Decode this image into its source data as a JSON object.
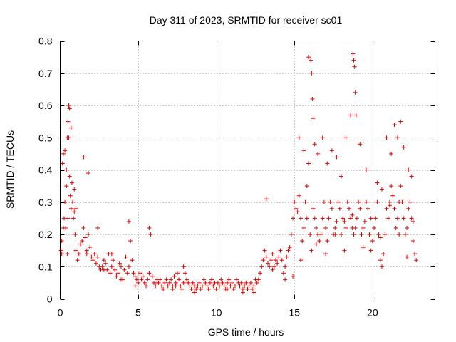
{
  "chart_data": {
    "type": "scatter",
    "title": "Day 311 of 2023, SRMTID for receiver sc01",
    "xlabel": "GPS time / hours",
    "ylabel": "SRMTID / TECUs",
    "xlim": [
      0,
      24
    ],
    "ylim": [
      0,
      0.8
    ],
    "xticks": [
      0,
      5,
      10,
      15,
      20
    ],
    "xtick_labels": [
      "0",
      "5",
      "10",
      "15",
      "20"
    ],
    "yticks": [
      0,
      0.1,
      0.2,
      0.3,
      0.4,
      0.5,
      0.6,
      0.7,
      0.8
    ],
    "ytick_labels": [
      "0",
      "0.1",
      "0.2",
      "0.3",
      "0.4",
      "0.5",
      "0.6",
      "0.7",
      "0.8"
    ],
    "grid": true,
    "marker": "+",
    "marker_color": "#e00000",
    "series": [
      {
        "name": "sc01",
        "x": [
          0.05,
          0.1,
          0.15,
          0.2,
          0.25,
          0.3,
          0.35,
          0.4,
          0.45,
          0.5,
          0.55,
          0.6,
          0.65,
          0.7,
          0.75,
          0.8,
          0.85,
          0.9,
          0.95,
          1.0,
          1.1,
          1.2,
          1.3,
          1.4,
          1.5,
          1.6,
          1.7,
          1.8,
          1.9,
          2.0,
          2.1,
          2.2,
          2.3,
          2.4,
          2.5,
          2.6,
          2.7,
          2.8,
          2.9,
          3.0,
          3.1,
          3.2,
          3.3,
          3.4,
          3.5,
          3.6,
          3.7,
          3.8,
          3.9,
          4.0,
          4.1,
          4.2,
          4.3,
          4.4,
          4.5,
          4.6,
          4.7,
          4.8,
          4.9,
          5.0,
          5.1,
          5.2,
          5.3,
          5.4,
          5.5,
          5.6,
          5.7,
          5.8,
          5.9,
          6.0,
          6.1,
          6.2,
          6.3,
          6.4,
          6.5,
          6.6,
          6.7,
          6.8,
          6.9,
          7.0,
          7.1,
          7.2,
          7.3,
          7.4,
          7.5,
          7.6,
          7.7,
          7.8,
          7.9,
          8.0,
          8.1,
          8.2,
          8.3,
          8.4,
          8.5,
          8.6,
          8.7,
          8.8,
          8.9,
          9.0,
          9.1,
          9.2,
          9.3,
          9.4,
          9.5,
          9.6,
          9.7,
          9.8,
          9.9,
          10.0,
          10.1,
          10.2,
          10.3,
          10.4,
          10.5,
          10.6,
          10.7,
          10.8,
          10.9,
          11.0,
          11.1,
          11.2,
          11.3,
          11.4,
          11.5,
          11.6,
          11.7,
          11.8,
          11.9,
          12.0,
          12.1,
          12.2,
          12.3,
          12.4,
          12.5,
          12.6,
          12.7,
          12.8,
          12.9,
          13.0,
          13.1,
          13.2,
          13.3,
          13.4,
          13.5,
          13.6,
          13.7,
          13.8,
          13.9,
          14.0,
          14.1,
          14.2,
          14.3,
          14.4,
          14.5,
          14.6,
          14.7,
          14.8,
          14.9,
          15.0,
          15.1,
          15.2,
          15.3,
          15.4,
          15.5,
          15.6,
          15.7,
          15.8,
          15.9,
          16.0,
          16.1,
          16.2,
          16.3,
          16.4,
          16.5,
          16.6,
          16.7,
          16.8,
          16.9,
          17.0,
          17.1,
          17.2,
          17.3,
          17.4,
          17.5,
          17.6,
          17.7,
          17.8,
          17.9,
          18.0,
          18.1,
          18.2,
          18.3,
          18.4,
          18.5,
          18.6,
          18.7,
          18.8,
          18.9,
          19.0,
          19.1,
          19.2,
          19.3,
          19.4,
          19.5,
          19.6,
          19.7,
          19.8,
          19.9,
          20.0,
          20.1,
          20.2,
          20.3,
          20.4,
          20.5,
          20.6,
          20.7,
          20.8,
          20.9,
          21.0,
          21.1,
          21.2,
          21.3,
          21.4,
          21.5,
          21.6,
          21.7,
          21.8,
          21.9,
          22.0,
          22.1,
          22.2,
          22.3,
          22.4,
          22.5,
          22.6,
          22.7,
          22.8,
          0.2,
          0.3,
          0.4,
          0.5,
          0.55,
          0.6,
          0.7,
          0.9,
          1.5,
          1.8,
          2.4,
          3.3,
          4.4,
          5.7,
          7.4,
          7.9,
          13.2,
          15.3,
          15.6,
          15.9,
          16.05,
          16.1,
          16.15,
          16.2,
          16.3,
          16.5,
          16.8,
          17.1,
          17.4,
          17.7,
          18.0,
          18.3,
          18.6,
          18.75,
          18.8,
          18.85,
          18.9,
          18.95,
          19.2,
          19.6,
          20.3,
          20.6,
          20.9,
          21.2,
          21.4,
          21.6,
          21.8,
          22.0,
          22.3,
          22.5,
          0.1,
          0.45,
          1.0,
          1.7,
          2.8,
          3.9,
          4.8,
          6.2,
          7.2,
          8.6,
          9.4,
          10.7,
          11.7,
          12.4,
          13.6,
          14.4,
          14.9,
          15.4,
          15.8,
          16.4,
          17.0,
          17.6,
          18.2,
          18.7,
          19.4,
          19.9,
          20.5,
          21.1,
          21.7,
          22.2,
          22.6
        ],
        "y": [
          0.15,
          0.18,
          0.42,
          0.45,
          0.25,
          0.3,
          0.22,
          0.35,
          0.5,
          0.55,
          0.6,
          0.38,
          0.32,
          0.28,
          0.36,
          0.3,
          0.25,
          0.27,
          0.2,
          0.15,
          0.12,
          0.14,
          0.17,
          0.18,
          0.22,
          0.19,
          0.15,
          0.2,
          0.16,
          0.13,
          0.12,
          0.14,
          0.11,
          0.13,
          0.1,
          0.09,
          0.1,
          0.12,
          0.11,
          0.09,
          0.14,
          0.08,
          0.1,
          0.12,
          0.09,
          0.07,
          0.08,
          0.11,
          0.1,
          0.06,
          0.09,
          0.13,
          0.08,
          0.1,
          0.18,
          0.12,
          0.08,
          0.07,
          0.06,
          0.05,
          0.08,
          0.06,
          0.07,
          0.05,
          0.04,
          0.06,
          0.08,
          0.2,
          0.07,
          0.05,
          0.04,
          0.06,
          0.05,
          0.06,
          0.04,
          0.03,
          0.05,
          0.06,
          0.04,
          0.05,
          0.06,
          0.04,
          0.07,
          0.05,
          0.08,
          0.06,
          0.04,
          0.03,
          0.05,
          0.08,
          0.06,
          0.05,
          0.04,
          0.03,
          0.05,
          0.04,
          0.03,
          0.04,
          0.05,
          0.03,
          0.04,
          0.06,
          0.05,
          0.04,
          0.03,
          0.05,
          0.06,
          0.04,
          0.05,
          0.03,
          0.05,
          0.04,
          0.06,
          0.05,
          0.04,
          0.03,
          0.05,
          0.06,
          0.04,
          0.05,
          0.03,
          0.04,
          0.06,
          0.05,
          0.04,
          0.05,
          0.03,
          0.04,
          0.05,
          0.03,
          0.04,
          0.05,
          0.03,
          0.04,
          0.06,
          0.05,
          0.06,
          0.08,
          0.1,
          0.12,
          0.15,
          0.13,
          0.11,
          0.1,
          0.12,
          0.14,
          0.1,
          0.12,
          0.11,
          0.13,
          0.15,
          0.12,
          0.08,
          0.1,
          0.13,
          0.15,
          0.16,
          0.2,
          0.25,
          0.3,
          0.28,
          0.27,
          0.32,
          0.25,
          0.18,
          0.22,
          0.3,
          0.35,
          0.42,
          0.2,
          0.15,
          0.28,
          0.25,
          0.22,
          0.2,
          0.18,
          0.2,
          0.25,
          0.3,
          0.22,
          0.18,
          0.25,
          0.3,
          0.28,
          0.2,
          0.22,
          0.24,
          0.3,
          0.28,
          0.2,
          0.25,
          0.24,
          0.22,
          0.3,
          0.28,
          0.25,
          0.22,
          0.2,
          0.22,
          0.25,
          0.3,
          0.28,
          0.2,
          0.22,
          0.24,
          0.3,
          0.28,
          0.2,
          0.15,
          0.18,
          0.22,
          0.25,
          0.3,
          0.2,
          0.12,
          0.1,
          0.14,
          0.2,
          0.28,
          0.25,
          0.3,
          0.35,
          0.32,
          0.28,
          0.22,
          0.25,
          0.3,
          0.35,
          0.3,
          0.25,
          0.2,
          0.22,
          0.28,
          0.3,
          0.25,
          0.18,
          0.14,
          0.12,
          0.22,
          0.46,
          0.4,
          0.25,
          0.5,
          0.59,
          0.53,
          0.34,
          0.44,
          0.39,
          0.22,
          0.14,
          0.24,
          0.22,
          0.04,
          0.1,
          0.31,
          0.5,
          0.46,
          0.75,
          0.74,
          0.7,
          0.62,
          0.56,
          0.48,
          0.45,
          0.5,
          0.42,
          0.46,
          0.44,
          0.38,
          0.5,
          0.57,
          0.76,
          0.74,
          0.72,
          0.64,
          0.57,
          0.48,
          0.4,
          0.36,
          0.34,
          0.5,
          0.45,
          0.54,
          0.5,
          0.55,
          0.47,
          0.4,
          0.38,
          0.14,
          0.14,
          0.28,
          0.14,
          0.09,
          0.06,
          0.04,
          0.05,
          0.03,
          0.02,
          0.04,
          0.03,
          0.02,
          0.02,
          0.09,
          0.06,
          0.07,
          0.12,
          0.25,
          0.17,
          0.14,
          0.2,
          0.15,
          0.26,
          0.16,
          0.25,
          0.19,
          0.29,
          0.2,
          0.13,
          0.24
        ]
      }
    ]
  }
}
